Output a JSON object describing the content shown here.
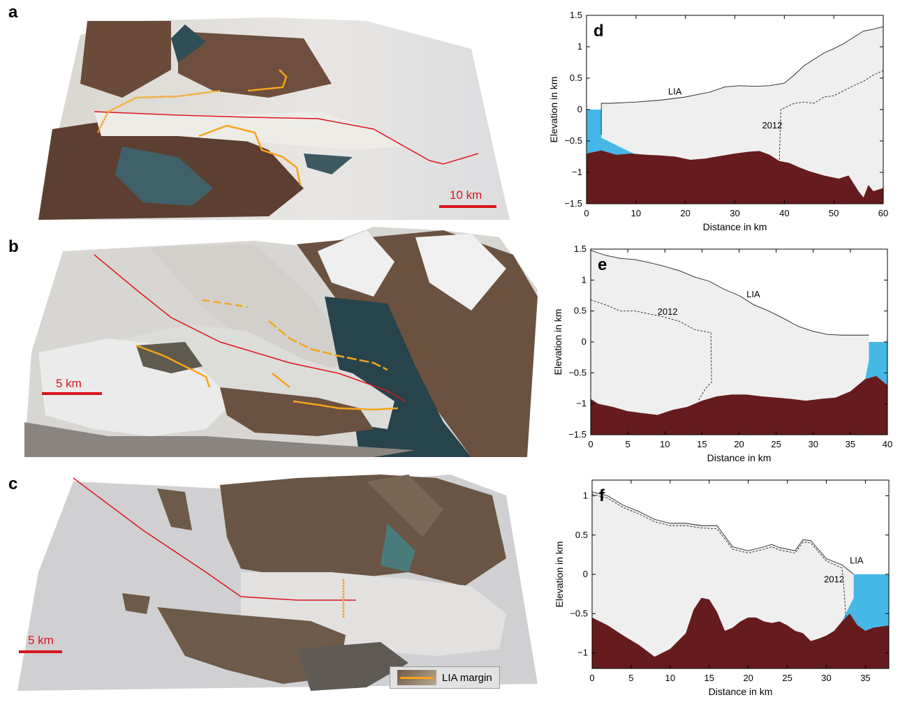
{
  "panels": {
    "a": {
      "letter": "a",
      "scale_label": "10 km"
    },
    "b": {
      "letter": "b",
      "scale_label": "5 km"
    },
    "c": {
      "letter": "c",
      "scale_label": "5 km",
      "legend_label": "LIA margin"
    }
  },
  "colors": {
    "ice": "#efefef",
    "bed": "#661b1d",
    "water": "#45b8e8",
    "red_line": "#e0141c",
    "lia_margin": "#f5a41a"
  },
  "chart_data": [
    {
      "id": "d",
      "letter": "d",
      "type": "area",
      "xlabel": "Distance in km",
      "ylabel": "Elevation in km",
      "xlim": [
        0,
        60
      ],
      "ylim": [
        -1.5,
        1.5
      ],
      "xticks": [
        0,
        10,
        20,
        30,
        40,
        50,
        60
      ],
      "yticks": [
        -1.5,
        -1,
        -0.5,
        0,
        0.5,
        1,
        1.5
      ],
      "ytick_labels": [
        "−1.5",
        "−1",
        "−0.5",
        "0",
        "0.5",
        "1",
        "1.5"
      ],
      "series": [
        {
          "name": "LIA",
          "style": "solid",
          "x": [
            3,
            5,
            10,
            15,
            20,
            25,
            28,
            31,
            34,
            37,
            40,
            42,
            44,
            46,
            48,
            50,
            52,
            54,
            56,
            58,
            60
          ],
          "y": [
            0.1,
            0.1,
            0.12,
            0.15,
            0.2,
            0.28,
            0.36,
            0.38,
            0.37,
            0.38,
            0.42,
            0.55,
            0.7,
            0.8,
            0.9,
            0.97,
            1.05,
            1.15,
            1.25,
            1.28,
            1.32
          ]
        },
        {
          "name": "2012",
          "style": "dashed",
          "x": [
            39,
            39.3,
            42,
            44,
            46,
            48,
            50,
            52,
            54,
            56,
            58,
            60
          ],
          "y": [
            -0.8,
            0.0,
            0.1,
            0.12,
            0.1,
            0.2,
            0.22,
            0.3,
            0.38,
            0.45,
            0.55,
            0.62
          ]
        },
        {
          "name": "bed",
          "x": [
            0,
            3,
            6,
            9,
            12,
            15,
            18,
            21,
            24,
            27,
            30,
            33,
            35,
            37,
            39,
            41,
            43,
            45,
            48,
            51,
            53,
            55,
            56,
            57,
            58,
            60
          ],
          "y": [
            -0.7,
            -0.65,
            -0.72,
            -0.7,
            -0.72,
            -0.73,
            -0.75,
            -0.8,
            -0.78,
            -0.74,
            -0.7,
            -0.67,
            -0.66,
            -0.72,
            -0.82,
            -0.85,
            -0.92,
            -0.98,
            -1.05,
            -1.1,
            -1.05,
            -1.3,
            -1.4,
            -1.2,
            -1.3,
            -1.25
          ]
        }
      ],
      "water_x_end": 3,
      "annotations": [
        {
          "text": "LIA",
          "x": 16.5,
          "y": 0.24
        },
        {
          "text": "2012",
          "x": 35.5,
          "y": -0.3
        }
      ]
    },
    {
      "id": "e",
      "letter": "e",
      "type": "area",
      "xlabel": "Distance in km",
      "ylabel": "Elevation in km",
      "xlim": [
        0,
        40
      ],
      "ylim": [
        -1.5,
        1.5
      ],
      "xticks": [
        0,
        5,
        10,
        15,
        20,
        25,
        30,
        35,
        40
      ],
      "yticks": [
        -1.5,
        -1,
        -0.5,
        0,
        0.5,
        1,
        1.5
      ],
      "ytick_labels": [
        "−1.5",
        "−1",
        "−0.5",
        "0",
        "0.5",
        "1",
        "1.5"
      ],
      "series": [
        {
          "name": "LIA",
          "style": "solid",
          "x": [
            0,
            2,
            4,
            6,
            8,
            10,
            12,
            14,
            16,
            18,
            20,
            22,
            24,
            26,
            28,
            30,
            32,
            34,
            36,
            37.5
          ],
          "y": [
            1.48,
            1.4,
            1.35,
            1.33,
            1.28,
            1.22,
            1.15,
            1.05,
            0.98,
            0.85,
            0.75,
            0.6,
            0.5,
            0.38,
            0.25,
            0.17,
            0.12,
            0.11,
            0.11,
            0.11
          ]
        },
        {
          "name": "2012",
          "style": "dashed",
          "x": [
            0,
            2,
            4,
            6,
            8,
            10,
            12,
            14,
            16.2,
            16.3,
            15.5,
            14.5
          ],
          "y": [
            0.68,
            0.6,
            0.5,
            0.5,
            0.45,
            0.4,
            0.33,
            0.2,
            0.15,
            -0.65,
            -0.75,
            -0.95
          ]
        },
        {
          "name": "bed",
          "x": [
            0,
            1,
            3,
            5,
            7,
            9,
            11,
            13,
            15,
            17,
            19,
            21,
            23,
            25,
            27,
            29,
            31,
            33,
            35,
            37,
            38.5,
            40
          ],
          "y": [
            -0.92,
            -1.0,
            -1.05,
            -1.12,
            -1.15,
            -1.18,
            -1.1,
            -1.05,
            -0.95,
            -0.88,
            -0.85,
            -0.85,
            -0.88,
            -0.9,
            -0.92,
            -0.95,
            -0.92,
            -0.9,
            -0.8,
            -0.6,
            -0.55,
            -0.7
          ]
        }
      ],
      "water_x_start": 37.5,
      "annotations": [
        {
          "text": "LIA",
          "x": 21,
          "y": 0.72
        },
        {
          "text": "2012",
          "x": 9,
          "y": 0.44
        }
      ]
    },
    {
      "id": "f",
      "letter": "f",
      "type": "area",
      "xlabel": "Distance in km",
      "ylabel": "Elevation in km",
      "xlim": [
        0,
        38
      ],
      "ylim": [
        -1.2,
        1.2
      ],
      "xticks": [
        0,
        5,
        10,
        15,
        20,
        25,
        30,
        35
      ],
      "yticks": [
        -1,
        -0.5,
        0,
        0.5,
        1
      ],
      "ytick_labels": [
        "−1",
        "−0.5",
        "0",
        "0.5",
        "1"
      ],
      "series": [
        {
          "name": "LIA",
          "style": "solid",
          "x": [
            0,
            2,
            4,
            6,
            8,
            10,
            12,
            14,
            16,
            18,
            20,
            22,
            23,
            24,
            26,
            27,
            28,
            30,
            32,
            33.5
          ],
          "y": [
            1.05,
            1.0,
            0.88,
            0.8,
            0.7,
            0.65,
            0.65,
            0.62,
            0.62,
            0.35,
            0.3,
            0.35,
            0.38,
            0.34,
            0.3,
            0.44,
            0.43,
            0.2,
            0.12,
            0.0
          ]
        },
        {
          "name": "2012",
          "style": "dashed",
          "x": [
            0,
            2,
            4,
            6,
            8,
            10,
            12,
            14,
            16,
            18,
            20,
            22,
            23,
            24,
            26,
            27,
            28,
            30,
            32,
            32.2,
            32.5
          ],
          "y": [
            1.02,
            0.97,
            0.85,
            0.77,
            0.67,
            0.62,
            0.62,
            0.59,
            0.58,
            0.32,
            0.27,
            0.32,
            0.35,
            0.31,
            0.27,
            0.41,
            0.4,
            0.17,
            0.08,
            -0.1,
            -0.55
          ]
        },
        {
          "name": "bed",
          "x": [
            0,
            2,
            4,
            6,
            8,
            10,
            12,
            13,
            14,
            15,
            16,
            17,
            18,
            19,
            20,
            21,
            22,
            23,
            24,
            25,
            26,
            27,
            28,
            29,
            30,
            31,
            32,
            33,
            34,
            35,
            36,
            38
          ],
          "y": [
            -0.55,
            -0.65,
            -0.78,
            -0.9,
            -1.05,
            -0.95,
            -0.75,
            -0.45,
            -0.3,
            -0.32,
            -0.48,
            -0.72,
            -0.68,
            -0.6,
            -0.55,
            -0.55,
            -0.6,
            -0.62,
            -0.6,
            -0.65,
            -0.72,
            -0.75,
            -0.85,
            -0.82,
            -0.78,
            -0.72,
            -0.6,
            -0.5,
            -0.65,
            -0.72,
            -0.68,
            -0.65
          ]
        }
      ],
      "water_x_start": 33.5,
      "annotations": [
        {
          "text": "LIA",
          "x": 33,
          "y": 0.14
        },
        {
          "text": "2012",
          "x": 29.7,
          "y": -0.1
        }
      ]
    }
  ]
}
